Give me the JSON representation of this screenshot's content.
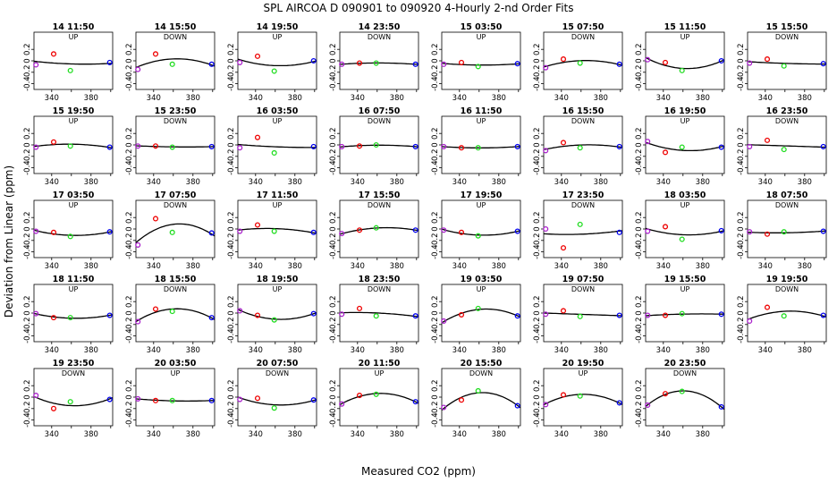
{
  "figure": {
    "title": "SPL   AIRCOA D   090901 to 090920   4-Hourly 2-nd Order Fits",
    "xlabel": "Measured CO2 (ppm)",
    "ylabel": "Deviation from Linear (ppm)"
  },
  "chart_data": {
    "type": "scatter",
    "title": "SPL   AIRCOA D   090901 to 090920   4-Hourly 2-nd Order Fits",
    "xlabel": "Measured CO2 (ppm)",
    "ylabel": "Deviation from Linear (ppm)",
    "xlim": [
      322,
      402
    ],
    "ylim": [
      -0.5,
      0.5
    ],
    "xticks": [
      340,
      380
    ],
    "yticks": [
      -0.4,
      -0.2,
      0.0,
      0.2
    ],
    "ytick_labels": [
      "-0.4",
      "-0.2",
      "0",
      "0.2"
    ],
    "standard_x": [
      324,
      342,
      359,
      399
    ],
    "standard_colors": [
      "#aa22cc",
      "#ee0000",
      "#22dd22",
      "#0000ee"
    ],
    "panels": [
      {
        "title": "14 11:50",
        "dir": "UP",
        "y": [
          -0.07,
          0.12,
          -0.17,
          -0.03
        ]
      },
      {
        "title": "14 15:50",
        "dir": "DOWN",
        "y": [
          -0.15,
          0.12,
          -0.06,
          -0.06
        ]
      },
      {
        "title": "14 19:50",
        "dir": "UP",
        "y": [
          -0.03,
          0.08,
          -0.18,
          0.0
        ]
      },
      {
        "title": "14 23:50",
        "dir": "DOWN",
        "y": [
          -0.06,
          -0.04,
          -0.04,
          -0.06
        ]
      },
      {
        "title": "15 03:50",
        "dir": "UP",
        "y": [
          -0.06,
          -0.03,
          -0.1,
          -0.05
        ]
      },
      {
        "title": "15 07:50",
        "dir": "DOWN",
        "y": [
          -0.12,
          0.03,
          -0.04,
          -0.06
        ]
      },
      {
        "title": "15 11:50",
        "dir": "UP",
        "y": [
          0.02,
          -0.03,
          -0.17,
          0.0
        ]
      },
      {
        "title": "15 15:50",
        "dir": "DOWN",
        "y": [
          -0.04,
          0.03,
          -0.09,
          -0.05
        ]
      },
      {
        "title": "15 19:50",
        "dir": "UP",
        "y": [
          -0.04,
          0.05,
          -0.02,
          -0.04
        ]
      },
      {
        "title": "15 23:50",
        "dir": "DOWN",
        "y": [
          -0.02,
          -0.02,
          -0.04,
          -0.03
        ]
      },
      {
        "title": "16 03:50",
        "dir": "UP",
        "y": [
          -0.05,
          0.13,
          -0.14,
          -0.03
        ]
      },
      {
        "title": "16 07:50",
        "dir": "DOWN",
        "y": [
          -0.03,
          -0.02,
          0.0,
          -0.03
        ]
      },
      {
        "title": "16 11:50",
        "dir": "UP",
        "y": [
          -0.03,
          -0.05,
          -0.05,
          -0.03
        ]
      },
      {
        "title": "16 15:50",
        "dir": "DOWN",
        "y": [
          -0.1,
          0.04,
          -0.05,
          -0.03
        ]
      },
      {
        "title": "16 19:50",
        "dir": "UP",
        "y": [
          0.06,
          -0.13,
          -0.04,
          -0.04
        ]
      },
      {
        "title": "16 23:50",
        "dir": "DOWN",
        "y": [
          -0.03,
          0.08,
          -0.08,
          -0.03
        ]
      },
      {
        "title": "17 03:50",
        "dir": "UP",
        "y": [
          -0.04,
          -0.06,
          -0.13,
          -0.05
        ]
      },
      {
        "title": "17 07:50",
        "dir": "DOWN",
        "y": [
          -0.28,
          0.18,
          -0.06,
          -0.07
        ]
      },
      {
        "title": "17 11:50",
        "dir": "UP",
        "y": [
          -0.04,
          0.07,
          -0.04,
          -0.06
        ]
      },
      {
        "title": "17 15:50",
        "dir": "DOWN",
        "y": [
          -0.08,
          -0.02,
          0.02,
          -0.02
        ]
      },
      {
        "title": "17 19:50",
        "dir": "UP",
        "y": [
          -0.02,
          -0.06,
          -0.12,
          -0.04
        ]
      },
      {
        "title": "17 23:50",
        "dir": "DOWN",
        "y": [
          0.0,
          -0.33,
          0.08,
          -0.06
        ]
      },
      {
        "title": "18 03:50",
        "dir": "UP",
        "y": [
          -0.04,
          0.04,
          -0.18,
          -0.03
        ]
      },
      {
        "title": "18 07:50",
        "dir": "DOWN",
        "y": [
          -0.05,
          -0.09,
          -0.05,
          -0.04
        ]
      },
      {
        "title": "18 11:50",
        "dir": "UP",
        "y": [
          -0.01,
          -0.08,
          -0.08,
          -0.04
        ]
      },
      {
        "title": "18 15:50",
        "dir": "DOWN",
        "y": [
          -0.15,
          0.07,
          0.03,
          -0.08
        ]
      },
      {
        "title": "18 19:50",
        "dir": "UP",
        "y": [
          0.04,
          -0.04,
          -0.12,
          -0.01
        ]
      },
      {
        "title": "18 23:50",
        "dir": "DOWN",
        "y": [
          -0.02,
          0.08,
          -0.05,
          -0.05
        ]
      },
      {
        "title": "19 03:50",
        "dir": "UP",
        "y": [
          -0.14,
          -0.03,
          0.08,
          -0.05
        ]
      },
      {
        "title": "19 07:50",
        "dir": "DOWN",
        "y": [
          -0.02,
          0.04,
          -0.06,
          -0.04
        ]
      },
      {
        "title": "19 15:50",
        "dir": "UP",
        "y": [
          -0.04,
          -0.04,
          -0.01,
          -0.02
        ]
      },
      {
        "title": "19 19:50",
        "dir": "DOWN",
        "y": [
          -0.14,
          0.1,
          -0.05,
          -0.04
        ]
      },
      {
        "title": "19 23:50",
        "dir": "DOWN",
        "y": [
          0.03,
          -0.2,
          -0.08,
          -0.04
        ]
      },
      {
        "title": "20 03:50",
        "dir": "UP",
        "y": [
          -0.03,
          -0.06,
          -0.06,
          -0.06
        ]
      },
      {
        "title": "20 07:50",
        "dir": "DOWN",
        "y": [
          -0.04,
          -0.02,
          -0.19,
          -0.05
        ]
      },
      {
        "title": "20 11:50",
        "dir": "UP",
        "y": [
          -0.12,
          0.03,
          0.05,
          -0.08
        ]
      },
      {
        "title": "20 15:50",
        "dir": "DOWN",
        "y": [
          -0.18,
          -0.05,
          0.11,
          -0.15
        ]
      },
      {
        "title": "20 19:50",
        "dir": "UP",
        "y": [
          -0.13,
          0.04,
          0.02,
          -0.1
        ]
      },
      {
        "title": "20 23:50",
        "dir": "DOWN",
        "y": [
          -0.14,
          0.06,
          0.1,
          -0.17
        ]
      }
    ]
  }
}
